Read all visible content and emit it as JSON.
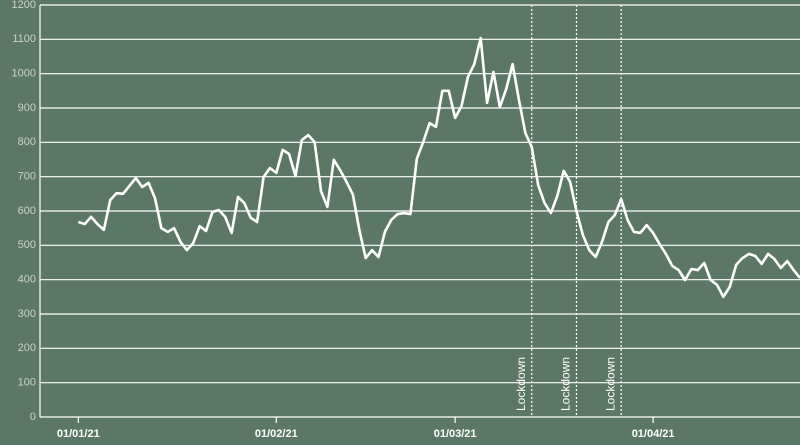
{
  "chart_data": {
    "type": "line",
    "color": "#ffffff",
    "grid": true,
    "x": [
      "01/01/21",
      "02/01/21",
      "03/01/21",
      "04/01/21",
      "05/01/21",
      "06/01/21",
      "07/01/21",
      "08/01/21",
      "09/01/21",
      "10/01/21",
      "11/01/21",
      "12/01/21",
      "13/01/21",
      "14/01/21",
      "15/01/21",
      "16/01/21",
      "17/01/21",
      "18/01/21",
      "19/01/21",
      "20/01/21",
      "21/01/21",
      "22/01/21",
      "23/01/21",
      "24/01/21",
      "25/01/21",
      "26/01/21",
      "27/01/21",
      "28/01/21",
      "29/01/21",
      "30/01/21",
      "31/01/21",
      "01/02/21",
      "02/02/21",
      "03/02/21",
      "04/02/21",
      "05/02/21",
      "06/02/21",
      "07/02/21",
      "08/02/21",
      "09/02/21",
      "10/02/21",
      "11/02/21",
      "12/02/21",
      "13/02/21",
      "14/02/21",
      "15/02/21",
      "16/02/21",
      "17/02/21",
      "18/02/21",
      "19/02/21",
      "20/02/21",
      "21/02/21",
      "22/02/21",
      "23/02/21",
      "24/02/21",
      "25/02/21",
      "26/02/21",
      "27/02/21",
      "28/02/21",
      "01/03/21",
      "02/03/21",
      "03/03/21",
      "04/03/21",
      "05/03/21",
      "06/03/21",
      "07/03/21",
      "08/03/21",
      "09/03/21",
      "10/03/21",
      "11/03/21",
      "12/03/21",
      "13/03/21",
      "14/03/21",
      "15/03/21",
      "16/03/21",
      "17/03/21",
      "18/03/21",
      "19/03/21",
      "20/03/21",
      "21/03/21",
      "22/03/21",
      "23/03/21",
      "24/03/21",
      "25/03/21",
      "26/03/21",
      "27/03/21",
      "28/03/21",
      "29/03/21",
      "30/03/21",
      "31/03/21",
      "01/04/21",
      "02/04/21",
      "03/04/21",
      "04/04/21",
      "05/04/21",
      "06/04/21",
      "07/04/21",
      "08/04/21",
      "09/04/21",
      "10/04/21",
      "11/04/21",
      "12/04/21",
      "13/04/21",
      "14/04/21",
      "15/04/21",
      "16/04/21",
      "17/04/21",
      "18/04/21",
      "19/04/21",
      "20/04/21",
      "21/04/21",
      "22/04/21",
      "23/04/21",
      "24/04/21"
    ],
    "values": [
      568,
      562,
      583,
      562,
      545,
      632,
      652,
      650,
      673,
      696,
      670,
      682,
      638,
      550,
      539,
      550,
      510,
      486,
      507,
      556,
      542,
      597,
      603,
      583,
      536,
      641,
      623,
      580,
      568,
      699,
      725,
      711,
      778,
      766,
      702,
      807,
      821,
      801,
      658,
      612,
      749,
      719,
      685,
      647,
      545,
      463,
      486,
      466,
      539,
      574,
      591,
      594,
      591,
      752,
      801,
      856,
      845,
      950,
      950,
      871,
      906,
      990,
      1028,
      1104,
      915,
      1005,
      903,
      955,
      1028,
      923,
      827,
      786,
      676,
      623,
      594,
      644,
      717,
      685,
      600,
      530,
      486,
      466,
      510,
      568,
      588,
      635,
      574,
      539,
      536,
      559,
      536,
      504,
      475,
      440,
      428,
      399,
      431,
      428,
      449,
      399,
      385,
      350,
      379,
      443,
      463,
      475,
      469,
      446,
      475,
      460,
      434,
      454,
      428,
      405
    ],
    "xlim": [
      "26/12/20",
      "24/04/21"
    ],
    "xticks": [
      "01/01/21",
      "01/02/21",
      "01/03/21",
      "01/04/21"
    ],
    "ylim": [
      0,
      1200
    ],
    "yticks": [
      0,
      100,
      200,
      300,
      400,
      500,
      600,
      700,
      800,
      900,
      1000,
      1100,
      1200
    ],
    "annotations": [
      {
        "x": "13/03/21",
        "text": "Lockdown"
      },
      {
        "x": "20/03/21",
        "text": "Lockdown"
      },
      {
        "x": "27/03/21",
        "text": "Lockdown"
      }
    ]
  }
}
